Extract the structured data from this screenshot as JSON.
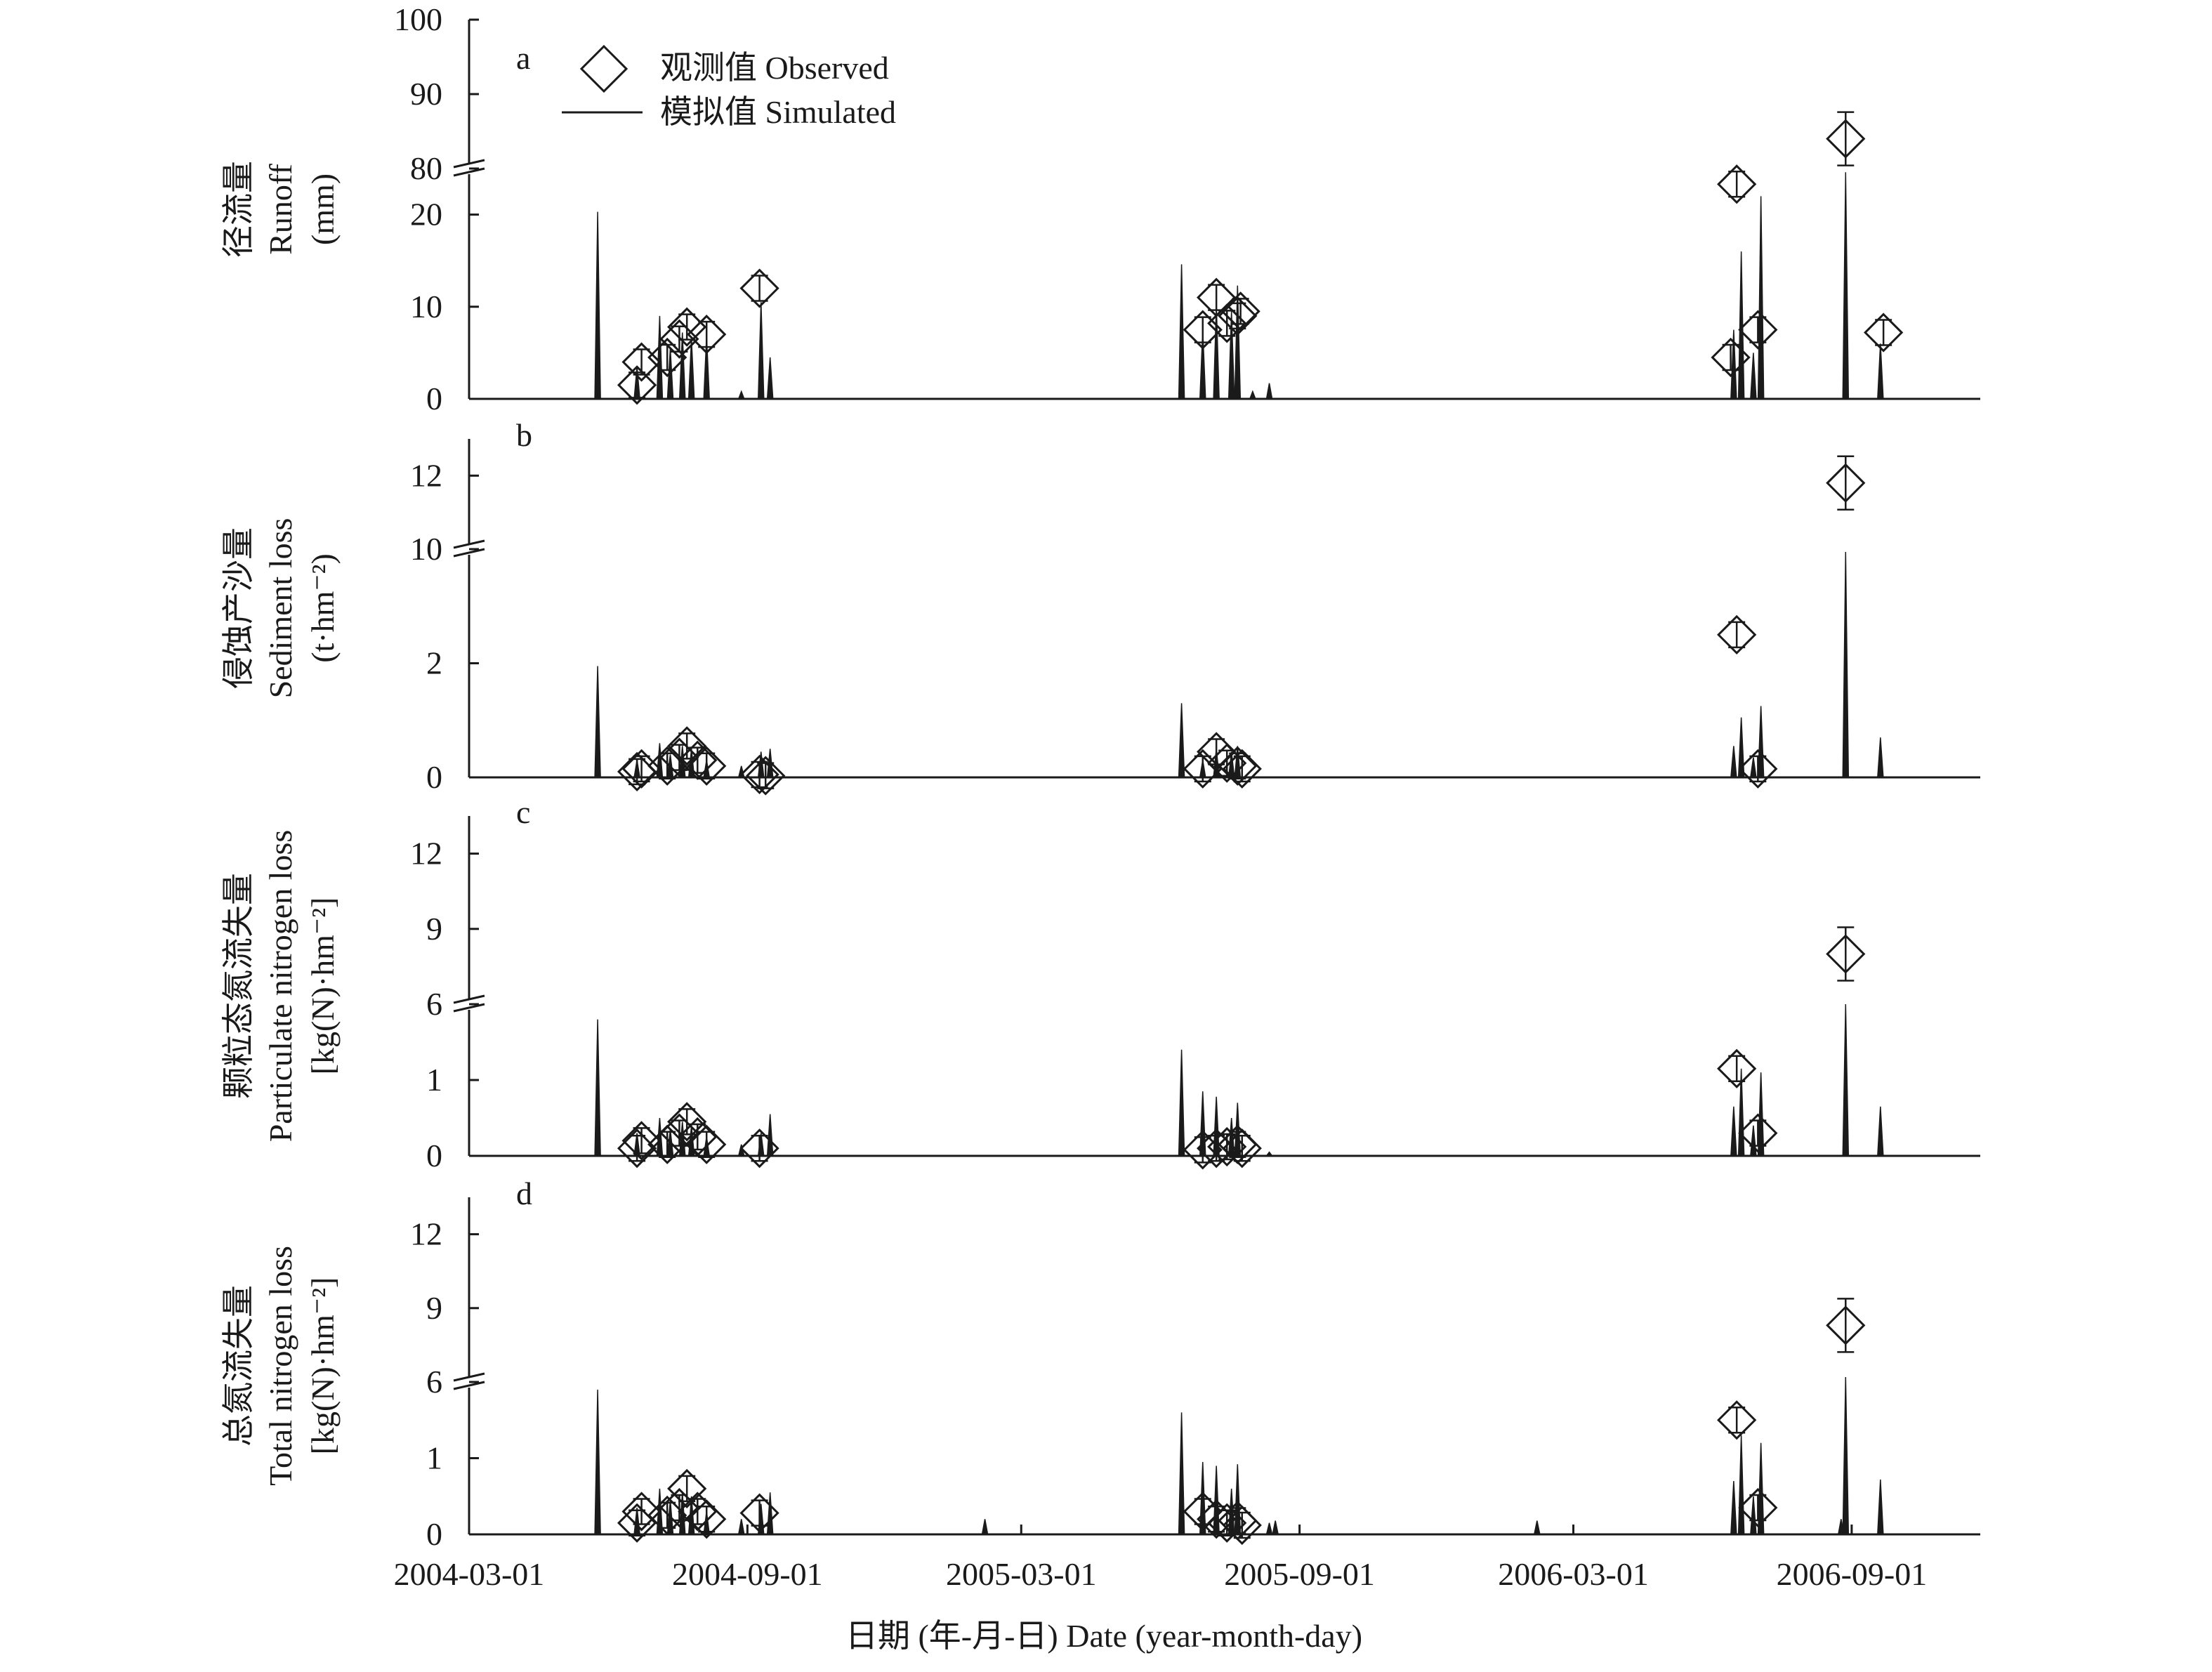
{
  "chart_data": [
    {
      "type": "line",
      "panel_label": "a",
      "ylabel": [
        "径流量",
        "Runoff",
        "(mm)"
      ],
      "yticks_lower": [
        0,
        10,
        20
      ],
      "yticks_upper": [
        80,
        90,
        100
      ],
      "ylim_lower": [
        0,
        25
      ],
      "ylim_upper": [
        80,
        100
      ],
      "simulated": [
        {
          "x": "2004-05-25",
          "y": 20.3
        },
        {
          "x": "2004-06-20",
          "y": 3.5
        },
        {
          "x": "2004-07-05",
          "y": 9.0
        },
        {
          "x": "2004-07-12",
          "y": 5.5
        },
        {
          "x": "2004-07-20",
          "y": 7.2
        },
        {
          "x": "2004-07-26",
          "y": 6.5
        },
        {
          "x": "2004-08-05",
          "y": 6.8
        },
        {
          "x": "2004-08-28",
          "y": 0.8
        },
        {
          "x": "2004-09-10",
          "y": 10.5
        },
        {
          "x": "2004-09-16",
          "y": 4.5
        },
        {
          "x": "2005-06-15",
          "y": 14.6
        },
        {
          "x": "2005-06-29",
          "y": 7.5
        },
        {
          "x": "2005-07-08",
          "y": 10.2
        },
        {
          "x": "2005-07-18",
          "y": 9.5
        },
        {
          "x": "2005-07-22",
          "y": 12.3
        },
        {
          "x": "2005-08-01",
          "y": 0.8
        },
        {
          "x": "2005-08-12",
          "y": 1.7
        },
        {
          "x": "2006-06-15",
          "y": 7.5
        },
        {
          "x": "2006-06-20",
          "y": 16.0
        },
        {
          "x": "2006-06-28",
          "y": 5.0
        },
        {
          "x": "2006-07-03",
          "y": 22.0
        },
        {
          "x": "2006-08-28",
          "y": 79.5
        },
        {
          "x": "2006-09-20",
          "y": 6.0
        }
      ],
      "observed": [
        {
          "x": "2004-06-20",
          "y": 1.5
        },
        {
          "x": "2004-06-23",
          "y": 4.0
        },
        {
          "x": "2004-07-10",
          "y": 4.5
        },
        {
          "x": "2004-07-18",
          "y": 6.5
        },
        {
          "x": "2004-07-23",
          "y": 7.8
        },
        {
          "x": "2004-08-05",
          "y": 7.0
        },
        {
          "x": "2004-09-09",
          "y": 12.0
        },
        {
          "x": "2005-06-29",
          "y": 7.5
        },
        {
          "x": "2005-07-08",
          "y": 11.0
        },
        {
          "x": "2005-07-15",
          "y": 8.2
        },
        {
          "x": "2005-07-22",
          "y": 9.0
        },
        {
          "x": "2005-07-24",
          "y": 9.5
        },
        {
          "x": "2006-06-13",
          "y": 4.5
        },
        {
          "x": "2006-06-17",
          "y": 23.3
        },
        {
          "x": "2006-07-01",
          "y": 7.5
        },
        {
          "x": "2006-08-28",
          "y": 84.0
        },
        {
          "x": "2006-09-22",
          "y": 7.2
        }
      ]
    },
    {
      "type": "line",
      "panel_label": "b",
      "ylabel": [
        "侵蚀产沙量",
        "Sediment loss",
        "(t·hm⁻²)"
      ],
      "yticks_lower": [
        0,
        2
      ],
      "yticks_upper": [
        10,
        12
      ],
      "ylim_lower": [
        0,
        4
      ],
      "ylim_upper": [
        10,
        13
      ],
      "simulated": [
        {
          "x": "2004-05-25",
          "y": 1.95
        },
        {
          "x": "2004-06-20",
          "y": 0.3
        },
        {
          "x": "2004-07-05",
          "y": 0.6
        },
        {
          "x": "2004-07-12",
          "y": 0.4
        },
        {
          "x": "2004-07-20",
          "y": 0.55
        },
        {
          "x": "2004-07-26",
          "y": 0.5
        },
        {
          "x": "2004-08-05",
          "y": 0.3
        },
        {
          "x": "2004-08-28",
          "y": 0.2
        },
        {
          "x": "2004-09-10",
          "y": 0.45
        },
        {
          "x": "2004-09-16",
          "y": 0.5
        },
        {
          "x": "2005-06-15",
          "y": 1.3
        },
        {
          "x": "2005-06-29",
          "y": 0.3
        },
        {
          "x": "2005-07-08",
          "y": 0.5
        },
        {
          "x": "2005-07-18",
          "y": 0.45
        },
        {
          "x": "2005-07-22",
          "y": 0.55
        },
        {
          "x": "2006-06-15",
          "y": 0.55
        },
        {
          "x": "2006-06-20",
          "y": 1.05
        },
        {
          "x": "2006-06-28",
          "y": 0.35
        },
        {
          "x": "2006-07-03",
          "y": 1.25
        },
        {
          "x": "2006-08-28",
          "y": 3.95
        },
        {
          "x": "2006-09-20",
          "y": 0.7
        }
      ],
      "observed": [
        {
          "x": "2004-06-20",
          "y": 0.1
        },
        {
          "x": "2004-06-23",
          "y": 0.15
        },
        {
          "x": "2004-07-10",
          "y": 0.2
        },
        {
          "x": "2004-07-18",
          "y": 0.35
        },
        {
          "x": "2004-07-23",
          "y": 0.55
        },
        {
          "x": "2004-07-30",
          "y": 0.3
        },
        {
          "x": "2004-08-05",
          "y": 0.2
        },
        {
          "x": "2004-09-09",
          "y": 0.05
        },
        {
          "x": "2004-09-13",
          "y": 0.03
        },
        {
          "x": "2005-06-29",
          "y": 0.15
        },
        {
          "x": "2005-07-08",
          "y": 0.45
        },
        {
          "x": "2005-07-15",
          "y": 0.25
        },
        {
          "x": "2005-07-22",
          "y": 0.2
        },
        {
          "x": "2005-07-25",
          "y": 0.15
        },
        {
          "x": "2006-06-17",
          "y": 2.5
        },
        {
          "x": "2006-07-01",
          "y": 0.15
        },
        {
          "x": "2006-08-28",
          "y": 11.8
        }
      ]
    },
    {
      "type": "line",
      "panel_label": "c",
      "ylabel": [
        "颗粒态氮流失量",
        "Particulate nitrogen loss",
        "[kg(N)·hm⁻²]"
      ],
      "yticks_lower": [
        0,
        1
      ],
      "yticks_upper": [
        6,
        9,
        12
      ],
      "ylim_lower": [
        0,
        2
      ],
      "ylim_upper": [
        6,
        13.5
      ],
      "simulated": [
        {
          "x": "2004-05-25",
          "y": 1.8
        },
        {
          "x": "2004-06-20",
          "y": 0.3
        },
        {
          "x": "2004-07-05",
          "y": 0.5
        },
        {
          "x": "2004-07-12",
          "y": 0.35
        },
        {
          "x": "2004-07-20",
          "y": 0.45
        },
        {
          "x": "2004-07-26",
          "y": 0.4
        },
        {
          "x": "2004-08-05",
          "y": 0.25
        },
        {
          "x": "2004-08-28",
          "y": 0.15
        },
        {
          "x": "2004-09-10",
          "y": 0.3
        },
        {
          "x": "2004-09-16",
          "y": 0.55
        },
        {
          "x": "2005-06-15",
          "y": 1.4
        },
        {
          "x": "2005-06-29",
          "y": 0.85
        },
        {
          "x": "2005-07-08",
          "y": 0.78
        },
        {
          "x": "2005-07-18",
          "y": 0.5
        },
        {
          "x": "2005-07-22",
          "y": 0.7
        },
        {
          "x": "2005-08-12",
          "y": 0.05
        },
        {
          "x": "2006-06-15",
          "y": 0.65
        },
        {
          "x": "2006-06-20",
          "y": 1.15
        },
        {
          "x": "2006-06-28",
          "y": 0.4
        },
        {
          "x": "2006-07-03",
          "y": 1.1
        },
        {
          "x": "2006-08-28",
          "y": 6.0
        },
        {
          "x": "2006-09-20",
          "y": 0.65
        }
      ],
      "observed": [
        {
          "x": "2004-06-20",
          "y": 0.1
        },
        {
          "x": "2004-06-23",
          "y": 0.2
        },
        {
          "x": "2004-07-10",
          "y": 0.15
        },
        {
          "x": "2004-07-18",
          "y": 0.3
        },
        {
          "x": "2004-07-23",
          "y": 0.45
        },
        {
          "x": "2004-07-30",
          "y": 0.25
        },
        {
          "x": "2004-08-05",
          "y": 0.15
        },
        {
          "x": "2004-09-09",
          "y": 0.1
        },
        {
          "x": "2005-06-29",
          "y": 0.08
        },
        {
          "x": "2005-07-08",
          "y": 0.1
        },
        {
          "x": "2005-07-15",
          "y": 0.12
        },
        {
          "x": "2005-07-22",
          "y": 0.15
        },
        {
          "x": "2005-07-25",
          "y": 0.1
        },
        {
          "x": "2006-06-17",
          "y": 1.15
        },
        {
          "x": "2006-07-01",
          "y": 0.3
        },
        {
          "x": "2006-08-28",
          "y": 8.0
        }
      ]
    },
    {
      "type": "line",
      "panel_label": "d",
      "ylabel": [
        "总氮流失量",
        "Total nitrogen loss",
        "[kg(N)·hm⁻²]"
      ],
      "yticks_lower": [
        0,
        1
      ],
      "yticks_upper": [
        6,
        9,
        12
      ],
      "ylim_lower": [
        0,
        2
      ],
      "ylim_upper": [
        6,
        13.5
      ],
      "simulated": [
        {
          "x": "2004-05-25",
          "y": 1.9
        },
        {
          "x": "2004-06-20",
          "y": 0.35
        },
        {
          "x": "2004-07-05",
          "y": 0.6
        },
        {
          "x": "2004-07-12",
          "y": 0.45
        },
        {
          "x": "2004-07-20",
          "y": 0.55
        },
        {
          "x": "2004-07-26",
          "y": 0.5
        },
        {
          "x": "2004-08-05",
          "y": 0.3
        },
        {
          "x": "2004-08-28",
          "y": 0.2
        },
        {
          "x": "2004-09-10",
          "y": 0.4
        },
        {
          "x": "2004-09-16",
          "y": 0.55
        },
        {
          "x": "2005-02-05",
          "y": 0.2
        },
        {
          "x": "2005-06-15",
          "y": 1.6
        },
        {
          "x": "2005-06-29",
          "y": 0.95
        },
        {
          "x": "2005-07-08",
          "y": 0.9
        },
        {
          "x": "2005-07-18",
          "y": 0.6
        },
        {
          "x": "2005-07-22",
          "y": 0.92
        },
        {
          "x": "2005-08-12",
          "y": 0.15
        },
        {
          "x": "2005-08-16",
          "y": 0.18
        },
        {
          "x": "2006-02-05",
          "y": 0.18
        },
        {
          "x": "2006-06-15",
          "y": 0.7
        },
        {
          "x": "2006-06-20",
          "y": 1.3
        },
        {
          "x": "2006-06-28",
          "y": 0.5
        },
        {
          "x": "2006-07-03",
          "y": 1.2
        },
        {
          "x": "2006-08-25",
          "y": 0.2
        },
        {
          "x": "2006-08-28",
          "y": 6.2
        },
        {
          "x": "2006-09-20",
          "y": 0.72
        }
      ],
      "observed": [
        {
          "x": "2004-06-20",
          "y": 0.15
        },
        {
          "x": "2004-06-23",
          "y": 0.3
        },
        {
          "x": "2004-07-10",
          "y": 0.25
        },
        {
          "x": "2004-07-18",
          "y": 0.35
        },
        {
          "x": "2004-07-23",
          "y": 0.6
        },
        {
          "x": "2004-07-30",
          "y": 0.3
        },
        {
          "x": "2004-08-05",
          "y": 0.2
        },
        {
          "x": "2004-09-09",
          "y": 0.28
        },
        {
          "x": "2005-06-29",
          "y": 0.3
        },
        {
          "x": "2005-07-08",
          "y": 0.2
        },
        {
          "x": "2005-07-15",
          "y": 0.15
        },
        {
          "x": "2005-07-22",
          "y": 0.18
        },
        {
          "x": "2005-07-25",
          "y": 0.12
        },
        {
          "x": "2006-06-17",
          "y": 1.5
        },
        {
          "x": "2006-07-01",
          "y": 0.35
        },
        {
          "x": "2006-08-28",
          "y": 8.3
        }
      ]
    }
  ],
  "shared": {
    "x_range": [
      "2004-03-01",
      "2006-11-25"
    ],
    "xticks": [
      "2004-03-01",
      "2004-09-01",
      "2005-03-01",
      "2005-09-01",
      "2006-03-01",
      "2006-09-01"
    ],
    "xlabel": "日期 (年-月-日) Date (year-month-day)",
    "legend": {
      "observed": "观测值 Observed",
      "simulated": "模拟值 Simulated",
      "position": "top-left"
    },
    "colors": {
      "line": "#1a1a1a",
      "background": "#ffffff"
    }
  }
}
